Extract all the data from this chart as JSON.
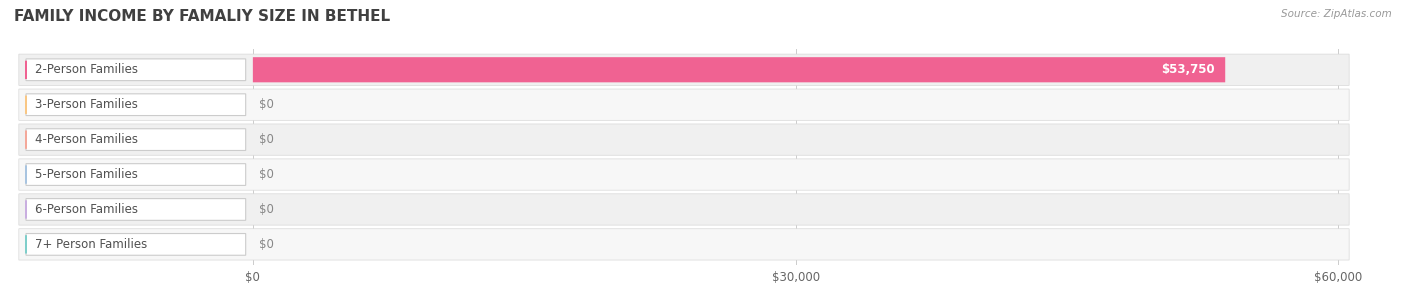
{
  "title": "FAMILY INCOME BY FAMALIY SIZE IN BETHEL",
  "source": "Source: ZipAtlas.com",
  "categories": [
    "2-Person Families",
    "3-Person Families",
    "4-Person Families",
    "5-Person Families",
    "6-Person Families",
    "7+ Person Families"
  ],
  "values": [
    53750,
    0,
    0,
    0,
    0,
    0
  ],
  "bar_colors": [
    "#f06292",
    "#f9c784",
    "#f4a89a",
    "#a8c4e0",
    "#c9aee0",
    "#7ececa"
  ],
  "row_bg_colors": [
    "#f0f0f0",
    "#f7f7f7",
    "#f0f0f0",
    "#f7f7f7",
    "#f0f0f0",
    "#f7f7f7"
  ],
  "value_labels": [
    "$53,750",
    "$0",
    "$0",
    "$0",
    "$0",
    "$0"
  ],
  "xlim_max": 60000,
  "xticks": [
    0,
    30000,
    60000
  ],
  "xticklabels": [
    "$0",
    "$30,000",
    "$60,000"
  ],
  "background_color": "#ffffff",
  "title_color": "#404040",
  "title_fontsize": 11,
  "label_fontsize": 8.5,
  "value_fontsize": 8.5
}
